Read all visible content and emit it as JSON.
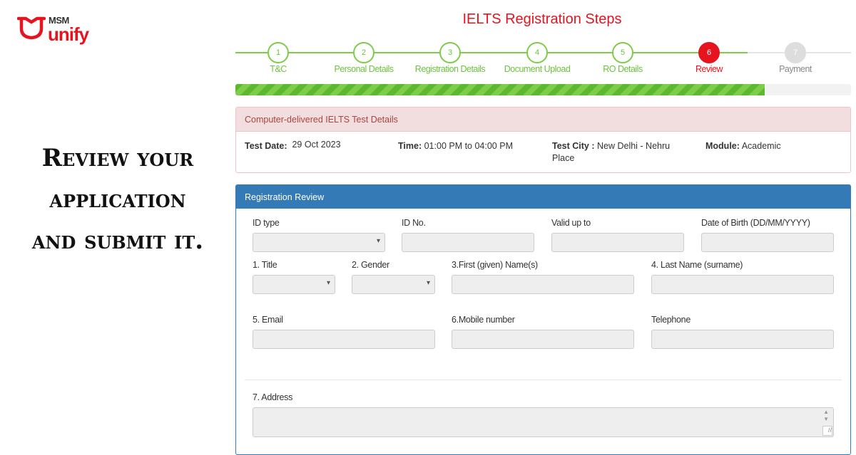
{
  "logo": {
    "top": "MSM",
    "bottom": "unify",
    "color": "#e5141f"
  },
  "tagline": [
    "Review your",
    "application",
    "and submit it."
  ],
  "title": "IELTS Registration Steps",
  "steps": [
    {
      "num": "1",
      "label": "T&C",
      "state": "done"
    },
    {
      "num": "2",
      "label": "Personal Details",
      "state": "done"
    },
    {
      "num": "3",
      "label": "Registration Details",
      "state": "done"
    },
    {
      "num": "4",
      "label": "Document Upload",
      "state": "done"
    },
    {
      "num": "5",
      "label": "RO Details",
      "state": "done"
    },
    {
      "num": "6",
      "label": "Review",
      "state": "active"
    },
    {
      "num": "7",
      "label": "Payment",
      "state": "todo"
    }
  ],
  "progress_percent": 86,
  "colors": {
    "done": "#6cc33d",
    "active": "#e5141f",
    "panel": "#337ab7"
  },
  "test_details": {
    "header": "Computer-delivered IELTS Test Details",
    "date_label": "Test Date:",
    "date": "29 Oct 2023",
    "time_label": "Time:",
    "time": "01:00 PM to 04:00 PM",
    "city_label": "Test City :",
    "city": "New Delhi - Nehru Place",
    "module_label": "Module:",
    "module": "Academic"
  },
  "review": {
    "header": "Registration Review",
    "fields": {
      "id_type": "ID type",
      "id_no": "ID No.",
      "valid": "Valid up to",
      "dob": "Date of Birth (DD/MM/YYYY)",
      "title": "1. Title",
      "gender": "2. Gender",
      "first": "3.First (given) Name(s)",
      "last": "4. Last Name (surname)",
      "email": "5. Email",
      "mobile": "6.Mobile number",
      "tel": "Telephone",
      "address": "7. Address"
    }
  }
}
